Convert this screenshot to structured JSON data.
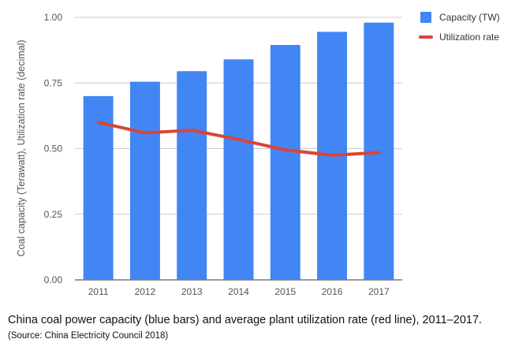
{
  "chart_data": {
    "type": "bar",
    "categories": [
      "2011",
      "2012",
      "2013",
      "2014",
      "2015",
      "2016",
      "2017"
    ],
    "series": [
      {
        "name": "Capacity (TW)",
        "kind": "bar",
        "color": "#4285f4",
        "values": [
          0.7,
          0.755,
          0.795,
          0.84,
          0.895,
          0.945,
          0.98
        ]
      },
      {
        "name": "Utilization rate",
        "kind": "line",
        "color": "#db4437",
        "values": [
          0.6,
          0.56,
          0.57,
          0.535,
          0.495,
          0.475,
          0.485
        ]
      }
    ],
    "ylabel": "Coal capacity (Terawatt), Utilization rate (decimal)",
    "xlabel": "",
    "ylim": [
      0,
      1.0
    ],
    "yticks": [
      "0.00",
      "0.25",
      "0.50",
      "0.75",
      "1.00"
    ],
    "grid": true,
    "legend_position": "top-right"
  },
  "caption": "China coal power capacity (blue bars) and average plant utilization rate (red line), 2011–2017.",
  "source": "(Source: China Electricity Council 2018)"
}
